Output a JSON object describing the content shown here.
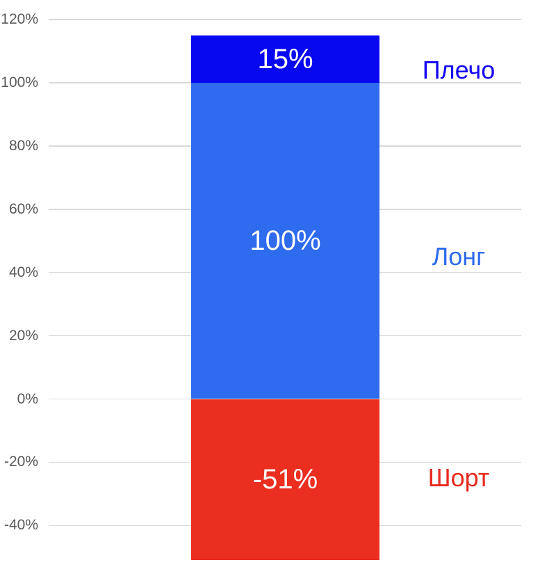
{
  "chart_data": {
    "type": "bar",
    "subtype": "single-stacked-column",
    "title": "",
    "xlabel": "",
    "ylabel": "",
    "background": "#ffffff",
    "grid": true,
    "gridline_color": "#d9d9d9",
    "tick_label_color": "#595959",
    "value_label_color": "#ffffff",
    "legend_position": "right-of-bar",
    "y_axis": {
      "min": -51,
      "max": 120,
      "tick_step": 20,
      "ticks": [
        {
          "value": 120,
          "label": "120%"
        },
        {
          "value": 100,
          "label": "100%"
        },
        {
          "value": 80,
          "label": "80%"
        },
        {
          "value": 60,
          "label": "60%"
        },
        {
          "value": 40,
          "label": "40%"
        },
        {
          "value": 20,
          "label": "20%"
        },
        {
          "value": 0,
          "label": "0%"
        },
        {
          "value": -20,
          "label": "-20%"
        },
        {
          "value": -40,
          "label": "-40%"
        }
      ]
    },
    "categories": [
      "Плечо",
      "Лонг",
      "Шорт"
    ],
    "values": [
      15,
      100,
      -51
    ],
    "segments": [
      {
        "id": "plecho",
        "name": "Плечо",
        "value": 15,
        "value_label": "15%",
        "stack_from": 100,
        "stack_to": 115,
        "color": "#0707f0",
        "category_label_color": "#1204f0",
        "label_anchor": 104
      },
      {
        "id": "long",
        "name": "Лонг",
        "value": 100,
        "value_label": "100%",
        "stack_from": 0,
        "stack_to": 100,
        "color": "#2e6bee",
        "category_label_color": "#2e6bee",
        "label_anchor": 45
      },
      {
        "id": "short",
        "name": "Шорт",
        "value": -51,
        "value_label": "-51%",
        "stack_from": -51,
        "stack_to": 0,
        "color": "#ea2e1f",
        "category_label_color": "#e8291d",
        "label_anchor": -25
      }
    ]
  }
}
